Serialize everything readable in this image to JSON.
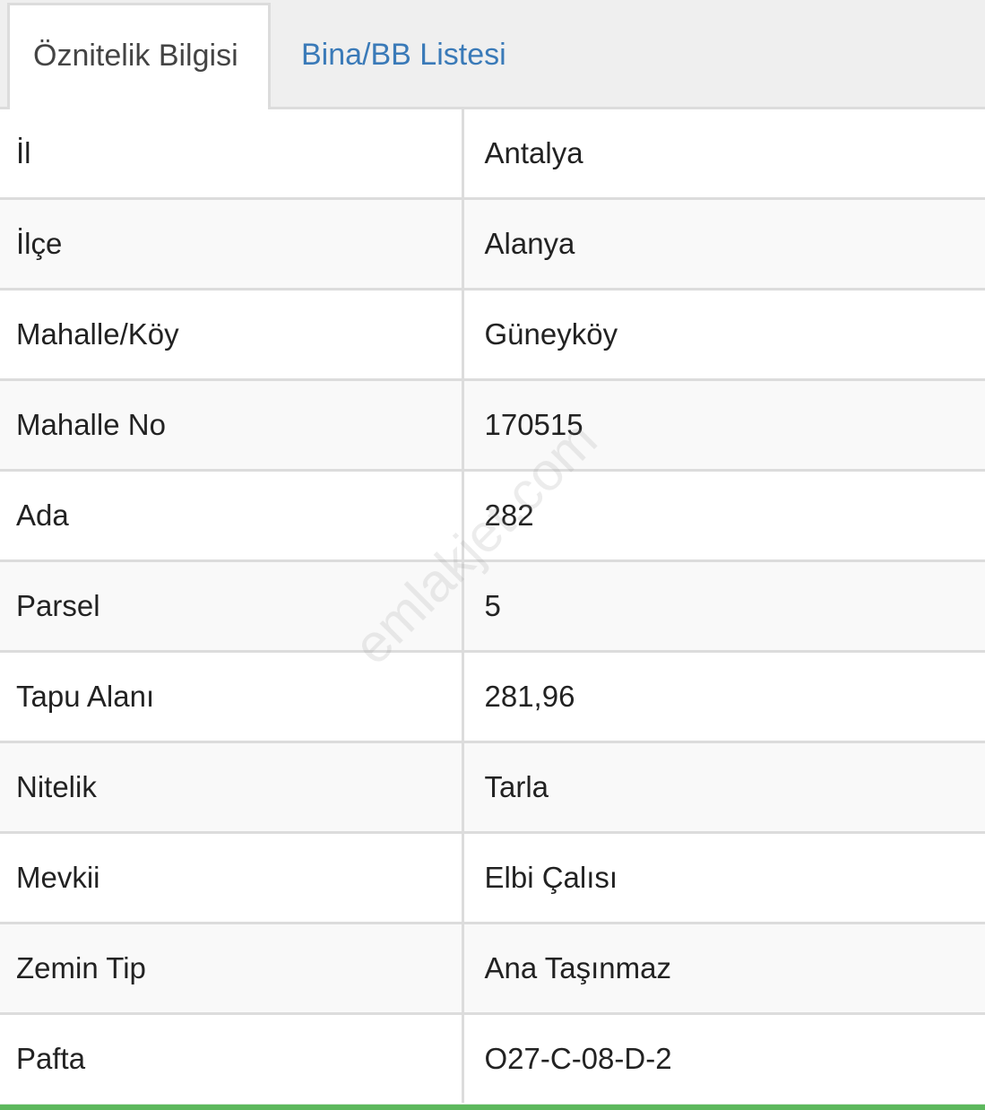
{
  "tabs": [
    {
      "label": "Öznitelik Bilgisi",
      "active": true
    },
    {
      "label": "Bina/BB Listesi",
      "active": false
    }
  ],
  "rows": [
    {
      "key": "İl",
      "value": "Antalya"
    },
    {
      "key": "İlçe",
      "value": "Alanya"
    },
    {
      "key": "Mahalle/Köy",
      "value": "Güneyköy"
    },
    {
      "key": "Mahalle No",
      "value": "170515"
    },
    {
      "key": "Ada",
      "value": "282"
    },
    {
      "key": "Parsel",
      "value": "5"
    },
    {
      "key": "Tapu Alanı",
      "value": "281,96"
    },
    {
      "key": "Nitelik",
      "value": "Tarla"
    },
    {
      "key": "Mevkii",
      "value": "Elbi Çalısı"
    },
    {
      "key": "Zemin Tip",
      "value": "Ana Taşınmaz"
    },
    {
      "key": "Pafta",
      "value": "O27-C-08-D-2"
    }
  ],
  "watermark": "emlakjet.com",
  "colors": {
    "tab_link": "#3a7ab8",
    "accent_bottom": "#5cb85c"
  }
}
